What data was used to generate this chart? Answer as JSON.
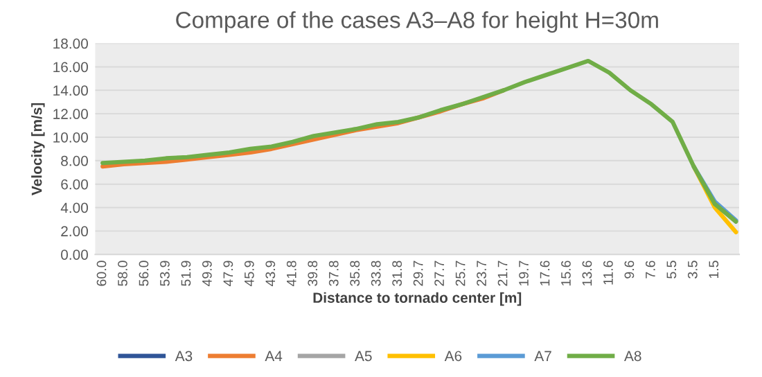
{
  "chart_data": {
    "type": "line",
    "title": "Compare of the cases A3–A8 for height H=30m",
    "xlabel": "Distance to tornado center [m]",
    "ylabel": "Velocity [m/s]",
    "categories": [
      "60.0",
      "58.0",
      "56.0",
      "53.9",
      "51.9",
      "49.9",
      "47.9",
      "45.9",
      "43.9",
      "41.8",
      "39.8",
      "37.8",
      "35.8",
      "33.8",
      "31.8",
      "29.7",
      "27.7",
      "25.7",
      "23.7",
      "21.7",
      "19.7",
      "17.6",
      "15.6",
      "13.6",
      "11.6",
      "9.6",
      "7.6",
      "5.5",
      "3.5",
      "1.5",
      null
    ],
    "series": [
      {
        "name": "A3",
        "color": "#2f5597",
        "values": [
          null,
          null,
          null,
          null,
          null,
          null,
          null,
          null,
          null,
          null,
          null,
          null,
          null,
          null,
          null,
          null,
          null,
          null,
          null,
          null,
          null,
          null,
          null,
          null,
          null,
          null,
          null,
          null,
          null,
          null,
          null
        ]
      },
      {
        "name": "A4",
        "color": "#ed7d31",
        "values": [
          7.5,
          7.7,
          7.8,
          7.9,
          8.1,
          8.3,
          8.5,
          8.7,
          9.0,
          9.4,
          9.8,
          10.2,
          10.6,
          10.9,
          11.2,
          11.7,
          12.2,
          12.8,
          13.3,
          14.0,
          null,
          null,
          null,
          null,
          null,
          null,
          null,
          null,
          null,
          null,
          null
        ]
      },
      {
        "name": "A5",
        "color": "#a5a5a5",
        "values": [
          null,
          null,
          null,
          null,
          null,
          null,
          null,
          null,
          null,
          null,
          null,
          null,
          null,
          null,
          null,
          null,
          null,
          null,
          null,
          null,
          null,
          null,
          null,
          null,
          null,
          null,
          null,
          null,
          null,
          null,
          null
        ]
      },
      {
        "name": "A6",
        "color": "#ffc000",
        "values": [
          null,
          null,
          null,
          null,
          null,
          null,
          null,
          null,
          null,
          null,
          null,
          null,
          null,
          null,
          null,
          null,
          null,
          null,
          null,
          null,
          null,
          null,
          null,
          null,
          null,
          null,
          null,
          null,
          7.5,
          4.0,
          1.9
        ]
      },
      {
        "name": "A7",
        "color": "#5b9bd5",
        "values": [
          null,
          null,
          null,
          null,
          null,
          null,
          null,
          null,
          null,
          null,
          null,
          null,
          null,
          null,
          null,
          null,
          null,
          null,
          null,
          null,
          null,
          null,
          null,
          null,
          null,
          null,
          null,
          null,
          7.5,
          4.5,
          2.9
        ]
      },
      {
        "name": "A8",
        "color": "#70ad47",
        "values": [
          7.8,
          7.9,
          8.0,
          8.2,
          8.3,
          8.5,
          8.7,
          9.0,
          9.2,
          9.6,
          10.1,
          10.4,
          10.7,
          11.1,
          11.3,
          11.7,
          12.3,
          12.8,
          13.4,
          14.0,
          14.7,
          15.3,
          15.9,
          16.5,
          15.5,
          14.0,
          12.8,
          11.3,
          7.5,
          4.3,
          2.8
        ]
      }
    ],
    "ylim": [
      0,
      18
    ],
    "yticks": [
      {
        "value": 0,
        "label": "0.00"
      },
      {
        "value": 2,
        "label": "2.00"
      },
      {
        "value": 4,
        "label": "4.00"
      },
      {
        "value": 6,
        "label": "6.00"
      },
      {
        "value": 8,
        "label": "8.00"
      },
      {
        "value": 10,
        "label": "10.00"
      },
      {
        "value": 12,
        "label": "12.00"
      },
      {
        "value": 14,
        "label": "14.00"
      },
      {
        "value": 16,
        "label": "16.00"
      },
      {
        "value": 18,
        "label": "18.00"
      }
    ],
    "grid": "y",
    "legend": "bottom",
    "marker": "none",
    "line_style": "solid"
  }
}
